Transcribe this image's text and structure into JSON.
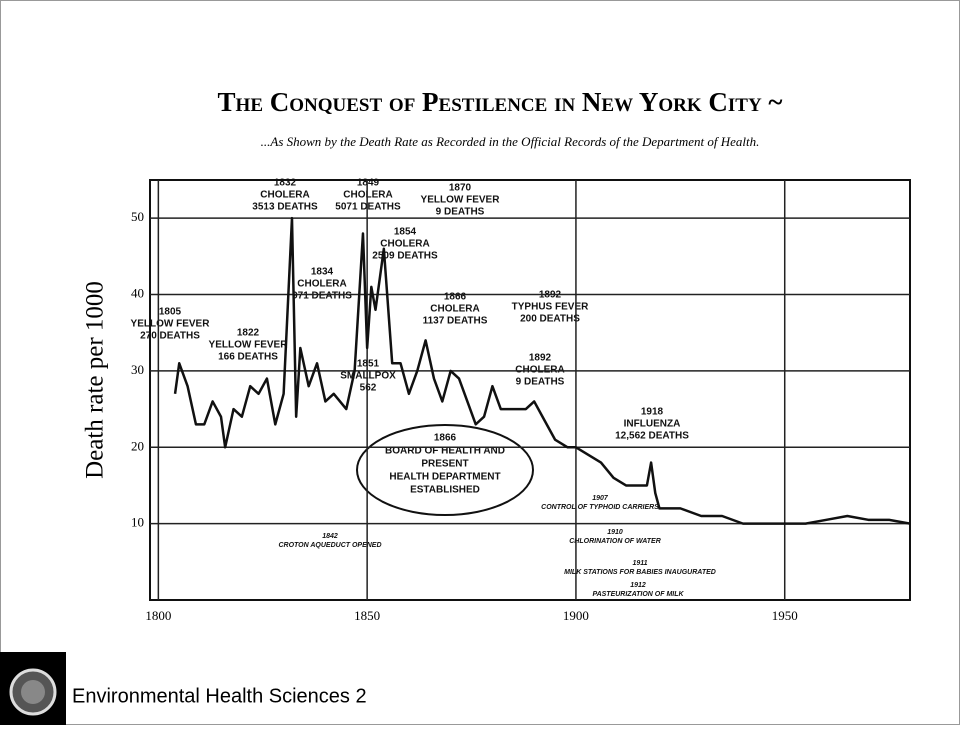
{
  "title": "The Conquest of Pestilence in New York City ~",
  "footer": "Environmental Health Sciences 2",
  "chart_data": {
    "type": "line",
    "subtitle": "...As Shown by the Death Rate as Recorded in the Official Records of the Department of Health.",
    "ylabel": "Death rate per 1000",
    "x": [
      1804,
      1805,
      1807,
      1809,
      1811,
      1813,
      1815,
      1816,
      1818,
      1820,
      1822,
      1824,
      1826,
      1828,
      1830,
      1832,
      1833,
      1834,
      1836,
      1838,
      1840,
      1842,
      1845,
      1847,
      1849,
      1850,
      1851,
      1852,
      1854,
      1856,
      1858,
      1860,
      1862,
      1864,
      1866,
      1868,
      1870,
      1872,
      1874,
      1876,
      1878,
      1880,
      1882,
      1885,
      1888,
      1890,
      1892,
      1895,
      1898,
      1900,
      1903,
      1906,
      1909,
      1912,
      1915,
      1917,
      1918,
      1919,
      1920,
      1925,
      1930,
      1935,
      1940,
      1945,
      1950,
      1955,
      1960,
      1965,
      1970,
      1975,
      1980
    ],
    "series": [
      {
        "name": "Death rate",
        "color": "#111111",
        "values": [
          27,
          31,
          28,
          23,
          23,
          26,
          24,
          20,
          25,
          24,
          28,
          27,
          29,
          23,
          27,
          50,
          24,
          33,
          28,
          31,
          26,
          27,
          25,
          30,
          48,
          33,
          41,
          38,
          46,
          31,
          31,
          27,
          30,
          34,
          29,
          26,
          30,
          29,
          26,
          23,
          24,
          28,
          25,
          25,
          25,
          26,
          24,
          21,
          20,
          20,
          19,
          18,
          16,
          15,
          15,
          15,
          18,
          14,
          12,
          12,
          11,
          11,
          10,
          10,
          10,
          10,
          10.5,
          11,
          10.5,
          10.5,
          10
        ]
      }
    ],
    "xlim": [
      1798,
      1980
    ],
    "ylim": [
      0,
      55
    ],
    "xticks": [
      1800,
      1850,
      1900,
      1950
    ],
    "yticks": [
      10,
      20,
      30,
      40,
      50
    ],
    "grid": true,
    "annotations": [
      [
        "1805",
        "YELLOW FEVER",
        "270 DEATHS"
      ],
      [
        "1822",
        "YELLOW FEVER",
        "166 DEATHS"
      ],
      [
        "1832",
        "CHOLERA",
        "3513 DEATHS"
      ],
      [
        "1834",
        "CHOLERA",
        "971 DEATHS"
      ],
      [
        "1849",
        "CHOLERA",
        "5071 DEATHS"
      ],
      [
        "1851",
        "SMALLPOX",
        "562"
      ],
      [
        "1854",
        "CHOLERA",
        "2509 DEATHS"
      ],
      [
        "1866",
        "CHOLERA",
        "1137 DEATHS"
      ],
      [
        "1870",
        "YELLOW FEVER",
        "9 DEATHS"
      ],
      [
        "1892",
        "TYPHUS FEVER",
        "200 DEATHS"
      ],
      [
        "1892",
        "CHOLERA",
        "9 DEATHS"
      ],
      [
        "1918",
        "INFLUENZA",
        "12,562 DEATHS"
      ],
      [
        "1866",
        "BOARD OF HEALTH AND",
        "PRESENT",
        "HEALTH DEPARTMENT",
        "ESTABLISHED"
      ],
      [
        "1842",
        "CROTON AQUEDUCT OPENED"
      ],
      [
        "1907",
        "CONTROL OF TYPHOID CARRIERS"
      ],
      [
        "1910",
        "CHLORINATION OF WATER"
      ],
      [
        "1911",
        "MILK STATIONS FOR BABIES INAUGURATED"
      ],
      [
        "1912",
        "PASTEURIZATION OF MILK"
      ]
    ]
  }
}
